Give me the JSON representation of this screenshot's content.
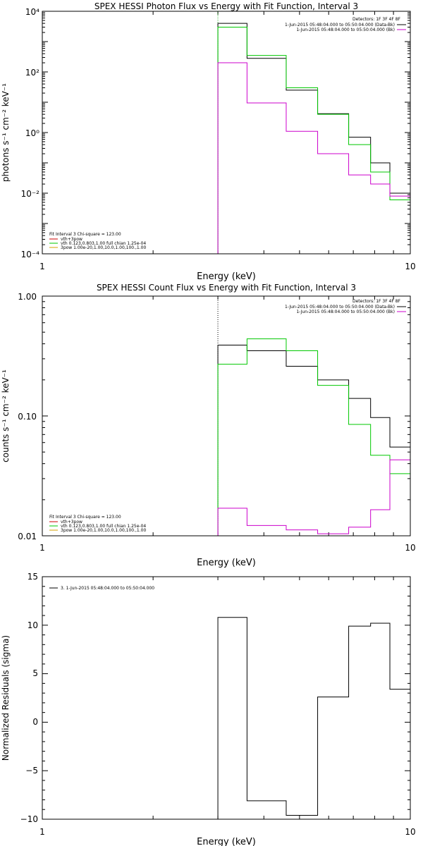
{
  "chart_data": [
    {
      "type": "line",
      "title": "SPEX HESSI Photon Flux vs Energy with Fit Function, Interval 3",
      "xlabel": "Energy (keV)",
      "ylabel": "photons s⁻¹ cm⁻² keV⁻¹",
      "xscale": "log",
      "yscale": "log",
      "xlim": [
        1,
        10
      ],
      "ylim": [
        0.0001,
        10000
      ],
      "x_ticks": [
        1,
        10
      ],
      "x_tick_labels": [
        "1",
        "10"
      ],
      "y_ticks": [
        0.0001,
        0.01,
        1,
        100,
        10000
      ],
      "y_tick_labels": [
        "10⁻⁴",
        "10⁻²",
        "10⁰",
        "10²",
        "10⁴"
      ],
      "marker_line_x": 3.0,
      "marker_line_color": "#00b000",
      "legend_top_right": [
        {
          "text": "Detectors: 1F 3F 4F 8F",
          "color": ""
        },
        {
          "text": "1-Jun-2015 05:48:04.000 to 05:50:04.000 (Data-Bk)",
          "color": "#000000"
        },
        {
          "text": "1-Jun-2015 05:48:04.000 to 05:50:04.000 (Bk)",
          "color": "#cc00cc"
        }
      ],
      "legend_bottom_left": [
        {
          "text": "Fit Interval 3   Chi-square = 123.00",
          "color": ""
        },
        {
          "text": "vth+3pow",
          "color": "#cc0000"
        },
        {
          "text": "vth 0.123,0.803,1.00  full chian 1.25e-04",
          "color": "#00c800"
        },
        {
          "text": "3pow 1.00e-20,1.00,10.0,1.00,100.,1.00",
          "color": "#d4a000"
        }
      ],
      "edges": [
        3.0,
        3.6,
        4.6,
        5.6,
        6.8,
        7.8,
        8.8,
        10.0
      ],
      "series": [
        {
          "color": "#000000",
          "values": [
            4000,
            280,
            25,
            4.2,
            0.7,
            0.1,
            0.01
          ]
        },
        {
          "color": "#00c800",
          "values": [
            3000,
            350,
            30,
            4.0,
            0.4,
            0.05,
            0.006
          ]
        },
        {
          "color": "#cc00cc",
          "values": [
            200,
            9.5,
            1.1,
            0.2,
            0.04,
            0.02,
            0.008
          ]
        }
      ]
    },
    {
      "type": "line",
      "title": "SPEX HESSI Count Flux vs Energy with Fit Function, Interval 3",
      "xlabel": "Energy (keV)",
      "ylabel": "counts s⁻¹ cm⁻² keV⁻¹",
      "xscale": "log",
      "yscale": "log",
      "xlim": [
        1,
        10
      ],
      "ylim": [
        0.01,
        1.0
      ],
      "x_ticks": [
        1,
        10
      ],
      "x_tick_labels": [
        "1",
        "10"
      ],
      "y_ticks": [
        0.01,
        0.1,
        1.0
      ],
      "y_tick_labels": [
        "0.01",
        "0.10",
        "1.00"
      ],
      "marker_line_x": 3.0,
      "marker_line_color": "#000000",
      "legend_top_right": [
        {
          "text": "Detectors: 1F 3F 4F 8F",
          "color": ""
        },
        {
          "text": "1-Jun-2015 05:48:04.000 to 05:50:04.000 (Data-Bk)",
          "color": "#000000"
        },
        {
          "text": "1-Jun-2015 05:48:04.000 to 05:50:04.000 (Bk)",
          "color": "#cc00cc"
        }
      ],
      "legend_bottom_left": [
        {
          "text": "Fit Interval 3   Chi-square = 123.00",
          "color": ""
        },
        {
          "text": "vth+3pow",
          "color": "#cc0000"
        },
        {
          "text": "vth 0.123,0.803,1.00  full chian 1.25e-04",
          "color": "#00c800"
        },
        {
          "text": "3pow 1.00e-20,1.00,10.0,1.00,100.,1.00",
          "color": "#d4a000"
        }
      ],
      "edges": [
        3.0,
        3.6,
        4.6,
        5.6,
        6.8,
        7.8,
        8.8,
        10.0
      ],
      "series": [
        {
          "color": "#000000",
          "values": [
            0.39,
            0.35,
            0.26,
            0.2,
            0.14,
            0.097,
            0.055
          ]
        },
        {
          "color": "#00c800",
          "values": [
            0.27,
            0.44,
            0.35,
            0.18,
            0.085,
            0.047,
            0.033
          ]
        },
        {
          "color": "#cc00cc",
          "values": [
            0.017,
            0.0122,
            0.0112,
            0.0104,
            0.0118,
            0.0165,
            0.043
          ]
        }
      ]
    },
    {
      "type": "line",
      "title": "",
      "xlabel": "Energy (keV)",
      "ylabel": "Normalized Residuals (sigma)",
      "xscale": "log",
      "yscale": "linear",
      "xlim": [
        1,
        10
      ],
      "ylim": [
        -10,
        15
      ],
      "x_ticks": [
        1,
        10
      ],
      "x_tick_labels": [
        "1",
        "10"
      ],
      "y_ticks": [
        -10,
        -5,
        0,
        5,
        10,
        15
      ],
      "y_tick_labels": [
        "−10",
        "−5",
        "0",
        "5",
        "10",
        "15"
      ],
      "legend_top_left": [
        {
          "text": "3.  1-Jun-2015 05:48:04.000 to 05:50:04.000",
          "color": "#000000"
        }
      ],
      "edges": [
        3.0,
        3.6,
        4.6,
        5.6,
        6.8,
        7.8,
        8.8,
        10.0
      ],
      "series": [
        {
          "color": "#000000",
          "values": [
            10.8,
            -8.1,
            -9.6,
            2.6,
            9.9,
            10.2,
            3.4
          ]
        }
      ]
    }
  ]
}
